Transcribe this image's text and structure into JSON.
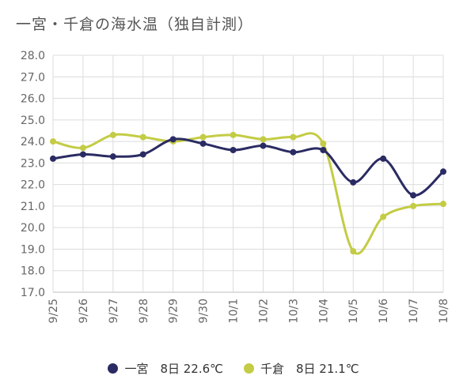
{
  "chart_data": {
    "type": "line",
    "title": "一宮・千倉の海水温（独自計測）",
    "categories": [
      "9/25",
      "9/26",
      "9/27",
      "9/28",
      "9/29",
      "9/30",
      "10/1",
      "10/2",
      "10/3",
      "10/4",
      "10/5",
      "10/6",
      "10/7",
      "10/8"
    ],
    "ylim": [
      17.0,
      28.0
    ],
    "yticks": [
      "17.0",
      "18.0",
      "19.0",
      "20.0",
      "21.0",
      "22.0",
      "23.0",
      "24.0",
      "25.0",
      "26.0",
      "27.0",
      "28.0"
    ],
    "grid": true,
    "legend_position": "bottom",
    "series": [
      {
        "name": "一宮",
        "legend_label": "一宮　8日 22.6℃",
        "color": "#2b2b63",
        "values": [
          23.2,
          23.4,
          23.3,
          23.4,
          24.1,
          23.9,
          23.6,
          23.8,
          23.5,
          23.6,
          22.1,
          23.2,
          21.5,
          22.6
        ]
      },
      {
        "name": "千倉",
        "legend_label": "千倉　8日 21.1℃",
        "color": "#c3cc44",
        "values": [
          24.0,
          23.7,
          24.3,
          24.2,
          24.0,
          24.2,
          24.3,
          24.1,
          24.2,
          23.9,
          18.9,
          20.5,
          21.0,
          21.1
        ]
      }
    ]
  }
}
